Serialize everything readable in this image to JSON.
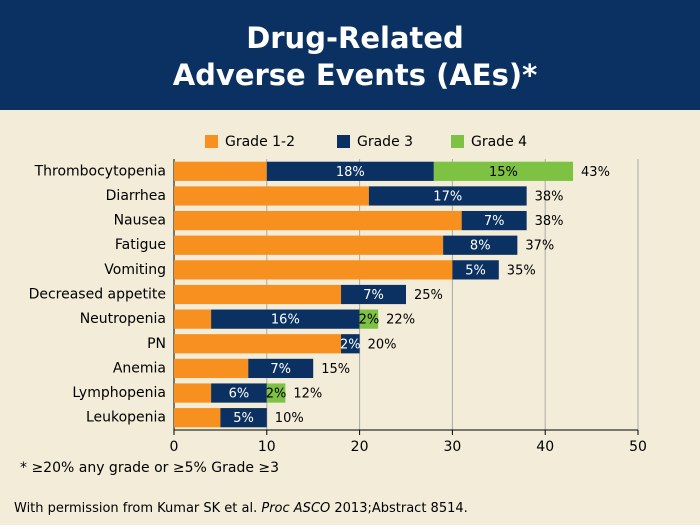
{
  "chart_data": {
    "type": "stacked-barh",
    "title": [
      "Drug-Related",
      "Adverse Events (AEs)*"
    ],
    "categories": [
      "Thrombocytopenia",
      "Diarrhea",
      "Nausea",
      "Fatigue",
      "Vomiting",
      "Decreased appetite",
      "Neutropenia",
      "PN",
      "Anemia",
      "Lymphopenia",
      "Leukopenia"
    ],
    "series": [
      {
        "name": "Grade 1-2",
        "color": "#f7901e",
        "values": [
          10,
          21,
          31,
          29,
          30,
          18,
          4,
          18,
          8,
          4,
          5
        ]
      },
      {
        "name": "Grade 3",
        "color": "#0a3161",
        "values": [
          18,
          17,
          7,
          8,
          5,
          7,
          16,
          2,
          7,
          6,
          5
        ],
        "value_labels": [
          "18%",
          "17%",
          "7%",
          "8%",
          "5%",
          "7%",
          "16%",
          "2%",
          "7%",
          "6%",
          "5%"
        ]
      },
      {
        "name": "Grade 4",
        "color": "#7dc242",
        "values": [
          15,
          null,
          null,
          null,
          null,
          null,
          2,
          null,
          null,
          2,
          null
        ],
        "value_labels": [
          "15%",
          null,
          null,
          null,
          null,
          null,
          "2%",
          null,
          null,
          "2%",
          null
        ]
      }
    ],
    "totals": [
      43,
      38,
      38,
      37,
      35,
      25,
      22,
      20,
      15,
      12,
      10
    ],
    "total_labels": [
      "43%",
      "38%",
      "38%",
      "37%",
      "35%",
      "25%",
      "22%",
      "20%",
      "15%",
      "12%",
      "10%"
    ],
    "xlim": [
      0,
      50
    ],
    "xticks": [
      0,
      10,
      20,
      30,
      40,
      50
    ],
    "grid": true,
    "legend": "top",
    "footnote": "* ≥20% any grade or ≥5% Grade ≥3",
    "source": [
      "With permission from Kumar SK et al. ",
      "Proc ASCO",
      " 2013;Abstract 8514."
    ]
  }
}
